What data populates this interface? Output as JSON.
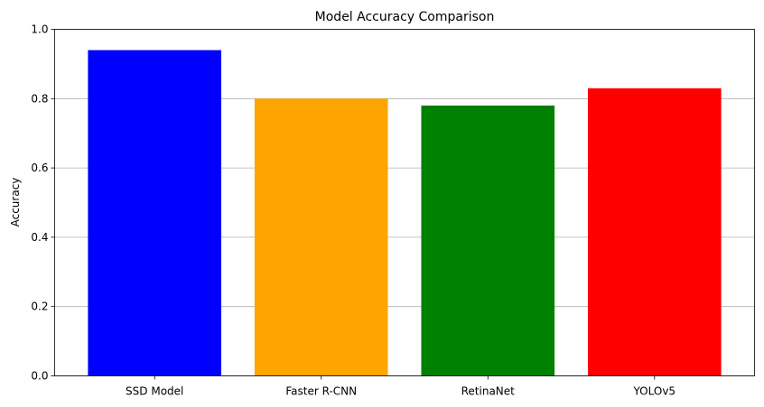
{
  "chart_data": {
    "type": "bar",
    "title": "Model Accuracy Comparison",
    "xlabel": "",
    "ylabel": "Accuracy",
    "categories": [
      "SSD Model",
      "Faster R-CNN",
      "RetinaNet",
      "YOLOv5"
    ],
    "values": [
      0.94,
      0.8,
      0.78,
      0.83
    ],
    "colors": [
      "#0000ff",
      "#ffa500",
      "#008000",
      "#ff0000"
    ],
    "ylim": [
      0,
      1.0
    ],
    "yticks": [
      0.0,
      0.2,
      0.4,
      0.6,
      0.8,
      1.0
    ],
    "ytick_labels": [
      "0.0",
      "0.2",
      "0.4",
      "0.6",
      "0.8",
      "1.0"
    ],
    "grid": "y",
    "legend": "none"
  }
}
